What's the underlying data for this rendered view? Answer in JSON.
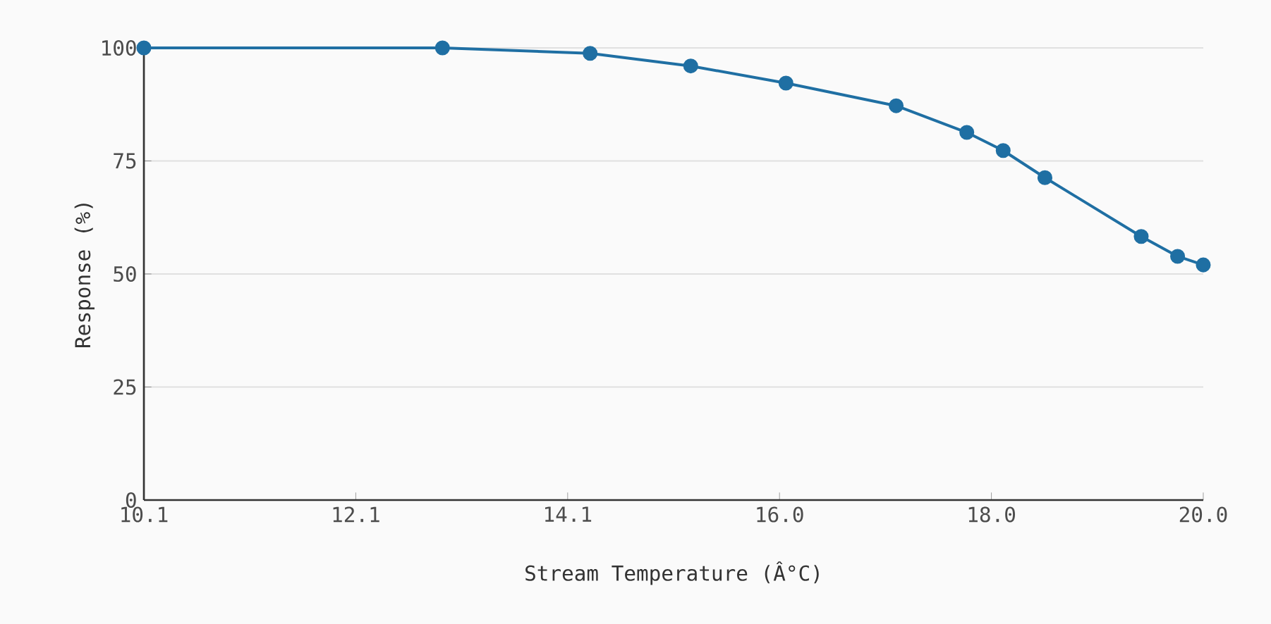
{
  "chart_data": {
    "type": "line",
    "xlabel": "Stream Temperature (Â°C)",
    "ylabel": "Response (%)",
    "x": [
      10.1,
      12.89,
      14.27,
      15.21,
      16.1,
      17.13,
      17.79,
      18.13,
      18.52,
      19.42,
      19.76,
      20.0
    ],
    "series": [
      {
        "color": "#1f6fa3",
        "values": [
          100,
          100,
          98.8,
          96,
          92.2,
          87.2,
          81.3,
          77.3,
          71.3,
          58.3,
          53.9,
          52
        ]
      }
    ],
    "xlim": [
      10.1,
      20.0
    ],
    "xticks": [
      10.1,
      {
        "value": 12.08,
        "label": "12.1"
      },
      {
        "value": 14.06,
        "label": "14.1"
      },
      {
        "value": 16.04,
        "label": "16.0"
      },
      {
        "value": 18.02,
        "label": "18.0"
      },
      {
        "value": 20.0,
        "label": "20.0"
      }
    ],
    "ylim": [
      0,
      100
    ],
    "yticks": [
      0,
      25,
      50,
      75,
      100
    ],
    "grid": "y",
    "marker": "circle",
    "line_style": "solid"
  }
}
